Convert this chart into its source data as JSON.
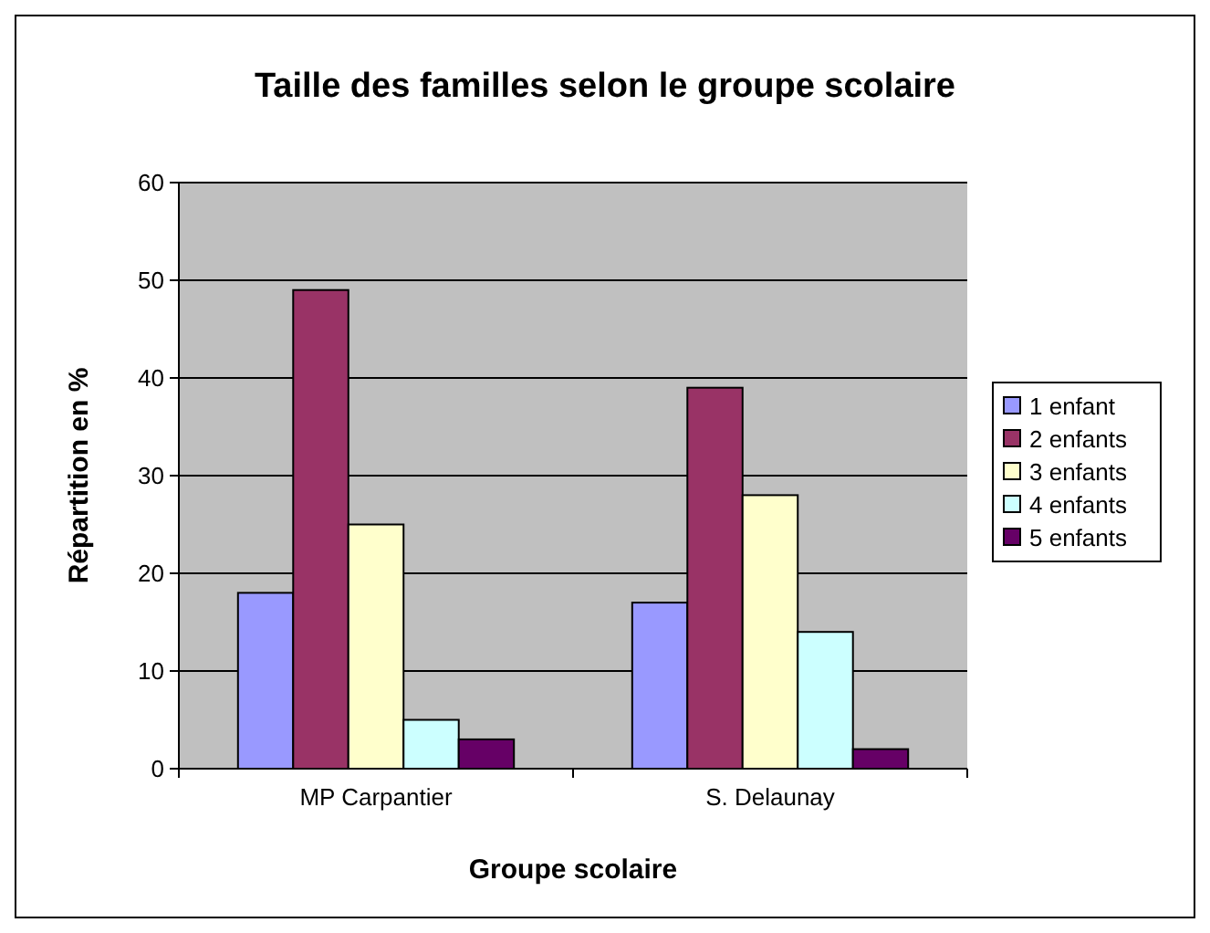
{
  "chart_data": {
    "type": "bar",
    "title": "Taille des familles selon le groupe scolaire",
    "xlabel": "Groupe scolaire",
    "ylabel": "Répartition en %",
    "categories": [
      "MP Carpantier",
      "S. Delaunay"
    ],
    "series": [
      {
        "name": "1 enfant",
        "color": "#9999ff",
        "values": [
          18,
          17
        ]
      },
      {
        "name": "2 enfants",
        "color": "#993366",
        "values": [
          49,
          39
        ]
      },
      {
        "name": "3 enfants",
        "color": "#ffffcc",
        "values": [
          25,
          28
        ]
      },
      {
        "name": "4 enfants",
        "color": "#ccffff",
        "values": [
          5,
          14
        ]
      },
      {
        "name": "5 enfants",
        "color": "#660066",
        "values": [
          3,
          2
        ]
      }
    ],
    "ylim": [
      0,
      60
    ],
    "yticks": [
      0,
      10,
      20,
      30,
      40,
      50,
      60
    ],
    "grid": "y",
    "legend": "right"
  }
}
